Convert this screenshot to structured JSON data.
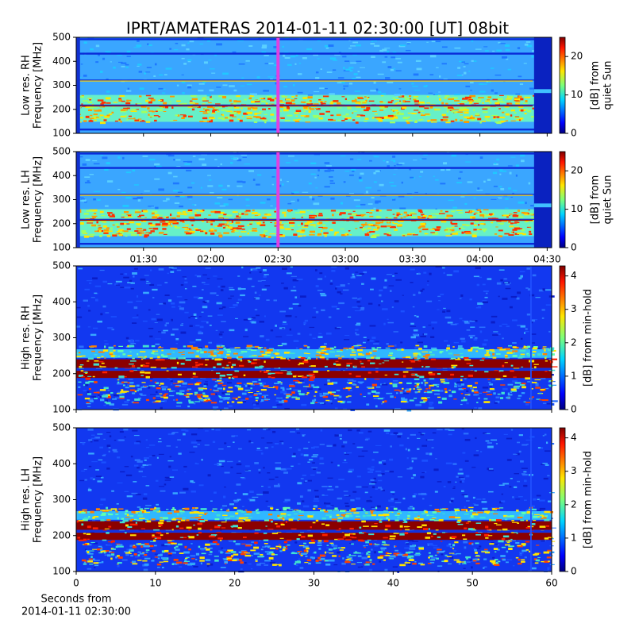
{
  "title": "IPRT/AMATERAS 2014-01-11 02:30:00 [UT]   08bit",
  "chart_data": [
    {
      "type": "heatmap",
      "ylabel": [
        "Low res. RH",
        "Frequency [MHz]"
      ],
      "xlim": [
        60,
        272
      ],
      "ylim": [
        100,
        500
      ],
      "yticks": [
        100,
        200,
        300,
        400,
        500
      ],
      "vline": 150,
      "vline_color": "#e040e0",
      "colormap": "jet",
      "colorbar": {
        "label": [
          "[dB] from",
          "quiet Sun"
        ],
        "lim": [
          0,
          25
        ],
        "ticks": [
          0,
          10,
          20
        ]
      }
    },
    {
      "type": "heatmap",
      "ylabel": [
        "Low res. LH",
        "Frequency [MHz]"
      ],
      "xlim": [
        60,
        272
      ],
      "ylim": [
        100,
        500
      ],
      "yticks": [
        100,
        200,
        300,
        400,
        500
      ],
      "xticks": [
        {
          "value": 90,
          "label": "01:30"
        },
        {
          "value": 120,
          "label": "02:00"
        },
        {
          "value": 150,
          "label": "02:30"
        },
        {
          "value": 180,
          "label": "03:00"
        },
        {
          "value": 210,
          "label": "03:30"
        },
        {
          "value": 240,
          "label": "04:00"
        },
        {
          "value": 270,
          "label": "04:30"
        }
      ],
      "vline": 150,
      "vline_color": "#e040e0",
      "colormap": "jet",
      "colorbar": {
        "label": [
          "[dB] from",
          "quiet Sun"
        ],
        "lim": [
          0,
          25
        ],
        "ticks": [
          0,
          10,
          20
        ]
      }
    },
    {
      "type": "heatmap",
      "ylabel": [
        "High res. RH",
        "Frequency [MHz]"
      ],
      "xlim": [
        0,
        60
      ],
      "ylim": [
        100,
        500
      ],
      "yticks": [
        100,
        200,
        300,
        400,
        500
      ],
      "colormap": "jet",
      "colorbar": {
        "label": [
          "[dB] from min-hold"
        ],
        "lim": [
          0,
          4.3
        ],
        "ticks": [
          0,
          1,
          2,
          3,
          4
        ]
      }
    },
    {
      "type": "heatmap",
      "ylabel": [
        "High res. LH",
        "Frequency [MHz]"
      ],
      "xlim": [
        0,
        60
      ],
      "ylim": [
        100,
        500
      ],
      "yticks": [
        100,
        200,
        300,
        400,
        500
      ],
      "xticks": [
        0,
        10,
        20,
        30,
        40,
        50,
        60
      ],
      "xlabel": [
        "Seconds from",
        "2014-01-11 02:30:00"
      ],
      "colormap": "jet",
      "colorbar": {
        "label": [
          "[dB] from min-hold"
        ],
        "lim": [
          0,
          4.3
        ],
        "ticks": [
          0,
          1,
          2,
          3,
          4
        ]
      }
    }
  ]
}
